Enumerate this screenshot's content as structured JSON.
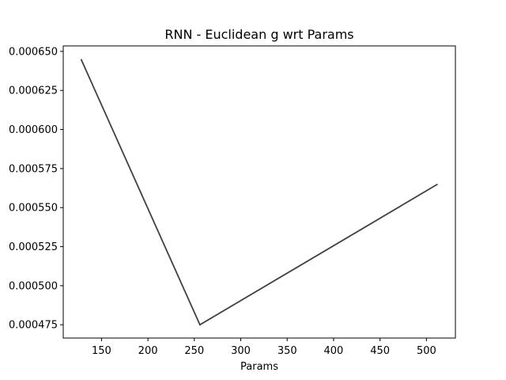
{
  "chart_data": {
    "type": "line",
    "title": "RNN - Euclidean g wrt Params",
    "xlabel": "Params",
    "ylabel": "",
    "xlim": [
      108.8,
      531.2
    ],
    "ylim": [
      0.0004665,
      0.0006535
    ],
    "xticks": [
      150,
      200,
      250,
      300,
      350,
      400,
      450,
      500
    ],
    "xtick_labels": [
      "150",
      "200",
      "250",
      "300",
      "350",
      "400",
      "450",
      "500"
    ],
    "yticks": [
      0.000475,
      0.0005,
      0.000525,
      0.00055,
      0.000575,
      0.0006,
      0.000625,
      0.00065
    ],
    "ytick_labels": [
      "0.000475",
      "0.000500",
      "0.000525",
      "0.000550",
      "0.000575",
      "0.000600",
      "0.000625",
      "0.000650"
    ],
    "grid": false,
    "series": [
      {
        "color": "#404040",
        "x": [
          128,
          256,
          512
        ],
        "y": [
          0.000645,
          0.000475,
          0.000565
        ]
      }
    ]
  }
}
